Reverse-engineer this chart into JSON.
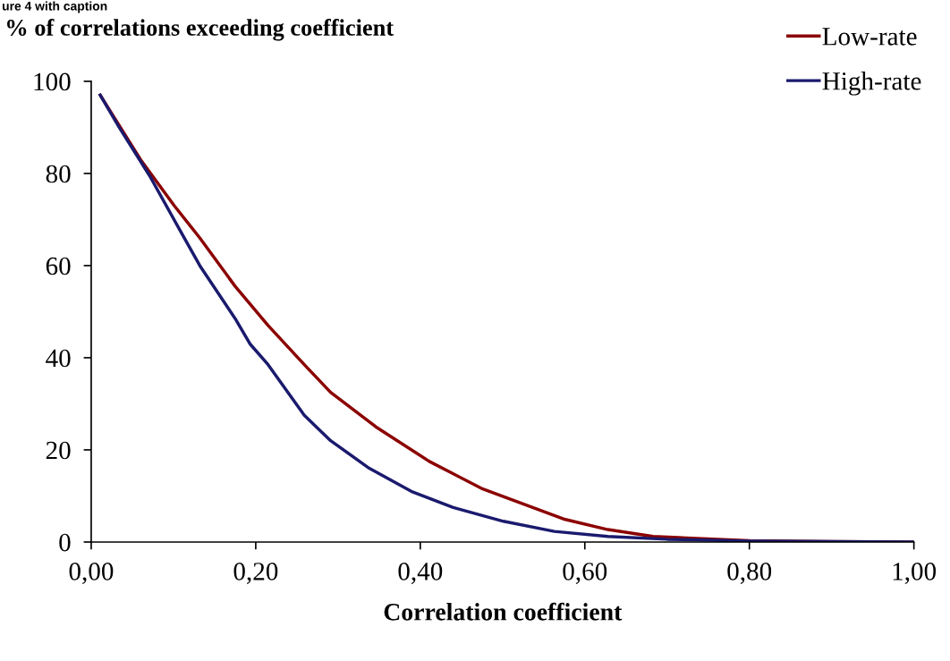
{
  "chart_data": {
    "type": "line",
    "title": "% of correlations exceeding coefficient",
    "xlabel": "Correlation coefficient",
    "annotations": [
      "ure 4 with caption"
    ],
    "xlim": [
      0,
      1
    ],
    "xticks": [
      {
        "value": 0,
        "label": "0,00"
      },
      {
        "value": 0.2,
        "label": "0,20"
      },
      {
        "value": 0.4,
        "label": "0,40"
      },
      {
        "value": 0.6,
        "label": "0,60"
      },
      {
        "value": 0.8,
        "label": "0,80"
      },
      {
        "value": 1,
        "label": "1,00"
      }
    ],
    "ylim": [
      0,
      100
    ],
    "yticks": [
      0,
      20,
      40,
      60,
      80,
      100
    ],
    "grid": false,
    "legend": "top right",
    "marker": "none",
    "line_style": "solid",
    "series": [
      {
        "name": "Low-rate",
        "color": "#8b0000",
        "x": [
          0.011,
          0.06,
          0.101,
          0.132,
          0.175,
          0.215,
          0.259,
          0.291,
          0.346,
          0.411,
          0.476,
          0.574,
          0.628,
          0.683,
          0.8,
          0.9,
          1.0
        ],
        "values": [
          97,
          83,
          73,
          66,
          55.5,
          47,
          38.5,
          32.5,
          25,
          17.5,
          11.5,
          5,
          2.7,
          1.2,
          0.3,
          0.1,
          0
        ]
      },
      {
        "name": "High-rate",
        "color": "#1a1a6e",
        "x": [
          0.011,
          0.034,
          0.071,
          0.11,
          0.132,
          0.175,
          0.193,
          0.215,
          0.259,
          0.291,
          0.338,
          0.389,
          0.44,
          0.501,
          0.563,
          0.628,
          0.7,
          0.8,
          0.9,
          1.0
        ],
        "values": [
          97,
          90,
          79.5,
          67,
          60,
          48.5,
          43,
          38.5,
          27.5,
          22,
          16,
          11,
          7.5,
          4.5,
          2.3,
          1.2,
          0.6,
          0.2,
          0.1,
          0
        ]
      }
    ]
  }
}
